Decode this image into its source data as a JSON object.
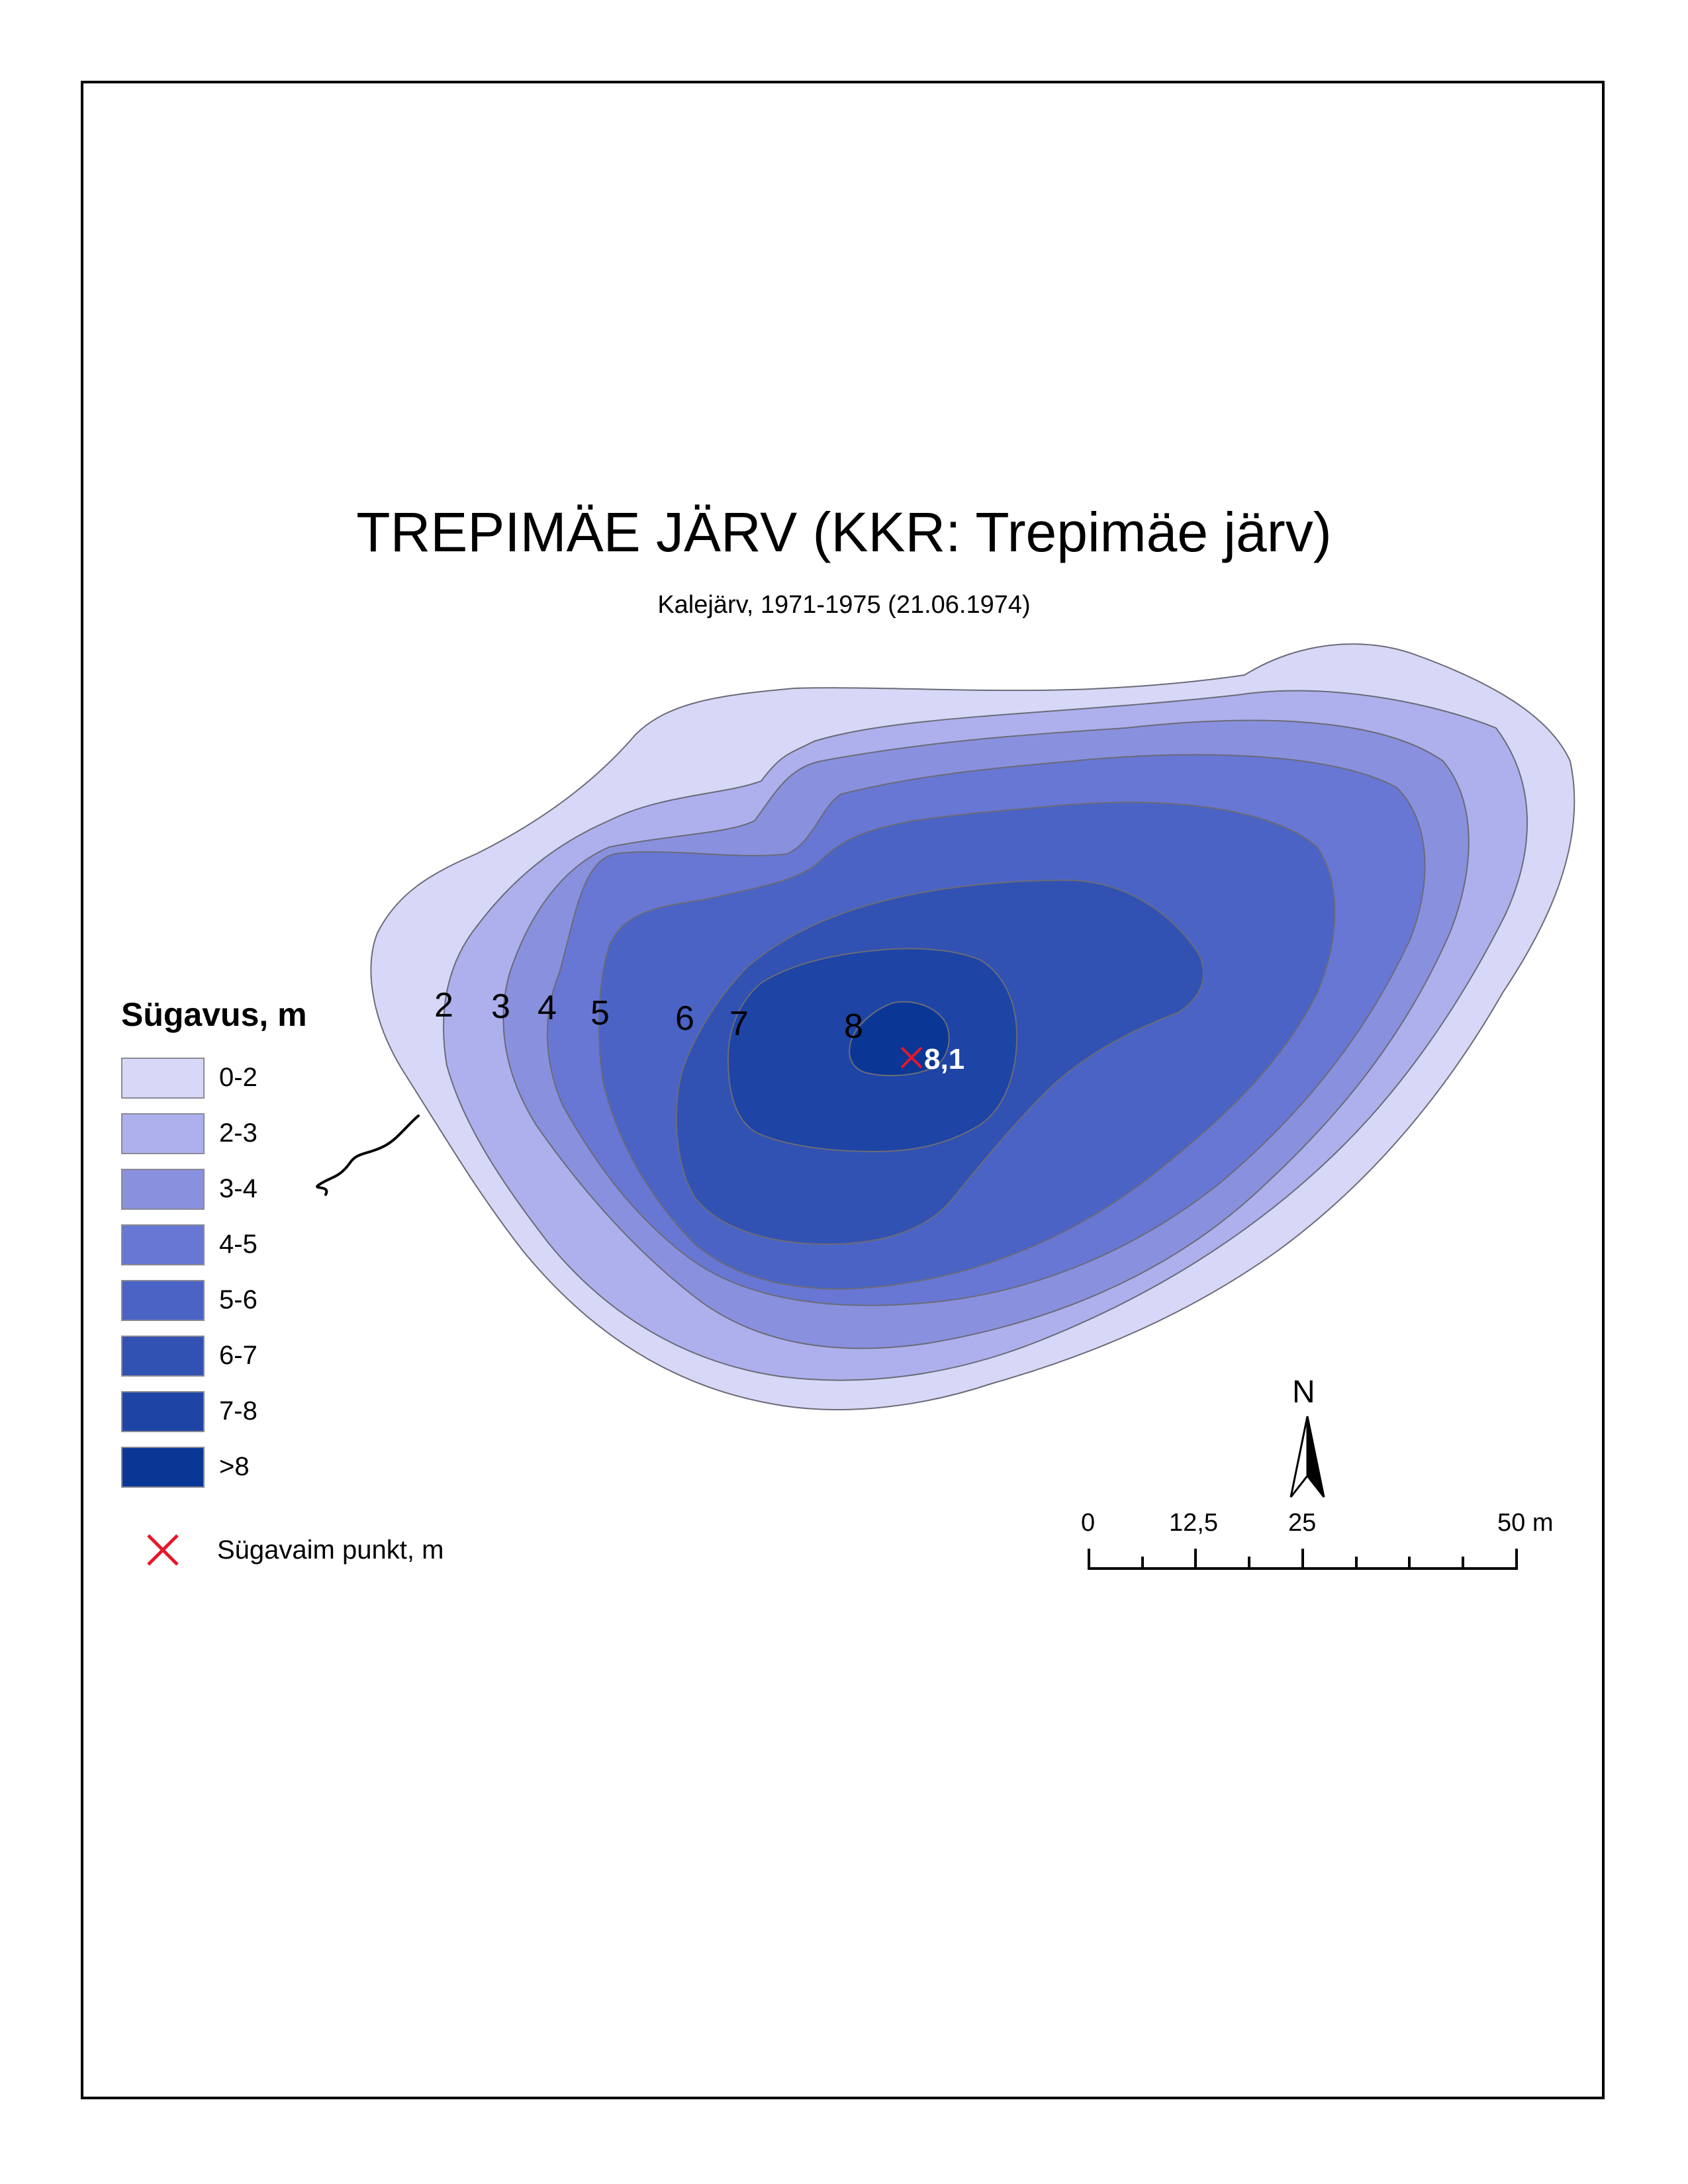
{
  "map": {
    "title": "TREPIMÄE JÄRV (KKR: Trepimäe järv)",
    "subtitle": "Kalejärv, 1971-1975 (21.06.1974)",
    "contour_labels": [
      "2",
      "3",
      "4",
      "5",
      "6",
      "7",
      "8"
    ],
    "deepest_point": {
      "value_label": "8,1",
      "depth_m": 8.1,
      "marker_color": "#e8162a"
    }
  },
  "legend": {
    "title": "Sügavus, m",
    "classes": [
      {
        "label": "0-2",
        "color": "#d7d8f7"
      },
      {
        "label": "2-3",
        "color": "#adb0ec"
      },
      {
        "label": "3-4",
        "color": "#8990de"
      },
      {
        "label": "4-5",
        "color": "#6877d4"
      },
      {
        "label": "5-6",
        "color": "#4a63c5"
      },
      {
        "label": "6-7",
        "color": "#3152b2"
      },
      {
        "label": "7-8",
        "color": "#1e44a6"
      },
      {
        "label": ">8",
        "color": "#0a3796"
      }
    ],
    "deepest_point_label": "Sügavaim punkt, m"
  },
  "north_arrow": {
    "label": "N"
  },
  "scale_bar": {
    "labels": [
      "0",
      "12,5",
      "25",
      "50 m"
    ],
    "values_m": [
      0,
      12.5,
      25,
      50
    ]
  }
}
